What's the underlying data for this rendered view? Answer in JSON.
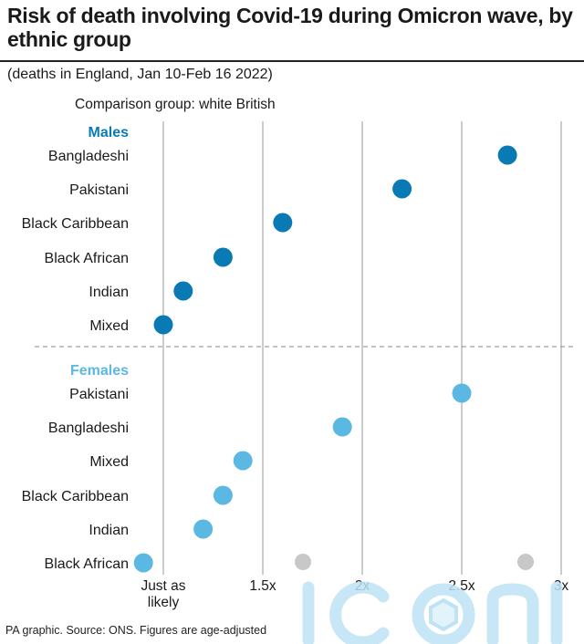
{
  "header": {
    "title": "Risk of death involving Covid-19 during Omicron wave, by ethnic group",
    "subtitle": "(deaths in England, Jan 10-Feb 16 2022)"
  },
  "comparison_note": "Comparison group: white British",
  "footer": "PA graphic. Source: ONS. Figures are age-adjusted",
  "watermark": "iconic",
  "colors": {
    "males": "#0a7ab5",
    "females": "#5ab8e2",
    "grid": "#9a9a9a",
    "divider": "#8a8a8a"
  },
  "chart_data": {
    "type": "scatter",
    "orientation": "horizontal-dot-plot",
    "x_ticks": [
      {
        "value": 1.0,
        "label": "Just as likely"
      },
      {
        "value": 1.5,
        "label": "1.5x"
      },
      {
        "value": 2.0,
        "label": "2x"
      },
      {
        "value": 2.5,
        "label": "2.5x"
      },
      {
        "value": 3.0,
        "label": "3x"
      }
    ],
    "xlim": [
      0.9,
      3.05
    ],
    "grid": "vertical",
    "groups": [
      {
        "name": "Males",
        "color": "#0a7ab5",
        "points": [
          {
            "label": "Bangladeshi",
            "value": 2.73
          },
          {
            "label": "Pakistani",
            "value": 2.2
          },
          {
            "label": "Black Caribbean",
            "value": 1.6
          },
          {
            "label": "Black African",
            "value": 1.3
          },
          {
            "label": "Indian",
            "value": 1.1
          },
          {
            "label": "Mixed",
            "value": 1.0
          }
        ]
      },
      {
        "name": "Females",
        "color": "#5ab8e2",
        "points": [
          {
            "label": "Pakistani",
            "value": 2.5
          },
          {
            "label": "Bangladeshi",
            "value": 1.9
          },
          {
            "label": "Mixed",
            "value": 1.4
          },
          {
            "label": "Black Caribbean",
            "value": 1.3
          },
          {
            "label": "Indian",
            "value": 1.2
          },
          {
            "label": "Black African",
            "value": 0.9
          }
        ]
      }
    ]
  }
}
